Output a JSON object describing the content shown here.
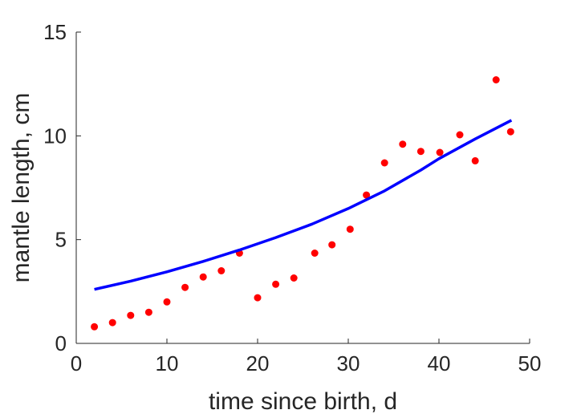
{
  "chart_data": {
    "type": "scatter",
    "title": "",
    "xlabel": "time since birth, d",
    "ylabel": "mantle length, cm",
    "xlim": [
      0,
      50
    ],
    "ylim": [
      0,
      15
    ],
    "xticks": [
      0,
      10,
      20,
      30,
      40,
      50
    ],
    "yticks": [
      0,
      5,
      10,
      15
    ],
    "grid": false,
    "series": [
      {
        "kind": "points",
        "color": "#ff0000",
        "x": [
          2,
          4,
          6,
          8,
          10,
          12,
          14,
          16,
          18,
          20,
          22,
          24,
          26.3,
          28.2,
          30.2,
          32,
          34,
          36,
          38,
          40.1,
          42.3,
          44,
          46.3,
          47.9
        ],
        "y": [
          0.8,
          1.0,
          1.35,
          1.5,
          2.0,
          2.7,
          3.2,
          3.5,
          4.35,
          2.2,
          2.85,
          3.15,
          4.35,
          4.75,
          5.5,
          7.15,
          8.7,
          9.6,
          9.25,
          9.2,
          10.05,
          8.8,
          12.7,
          10.2
        ]
      },
      {
        "kind": "line",
        "color": "#0000ff",
        "x": [
          2,
          6,
          10,
          14,
          18,
          22,
          26,
          30,
          34,
          38,
          40,
          44,
          48
        ],
        "y": [
          2.6,
          3.0,
          3.45,
          3.95,
          4.5,
          5.1,
          5.75,
          6.5,
          7.35,
          8.35,
          8.9,
          9.85,
          10.75
        ]
      }
    ]
  }
}
